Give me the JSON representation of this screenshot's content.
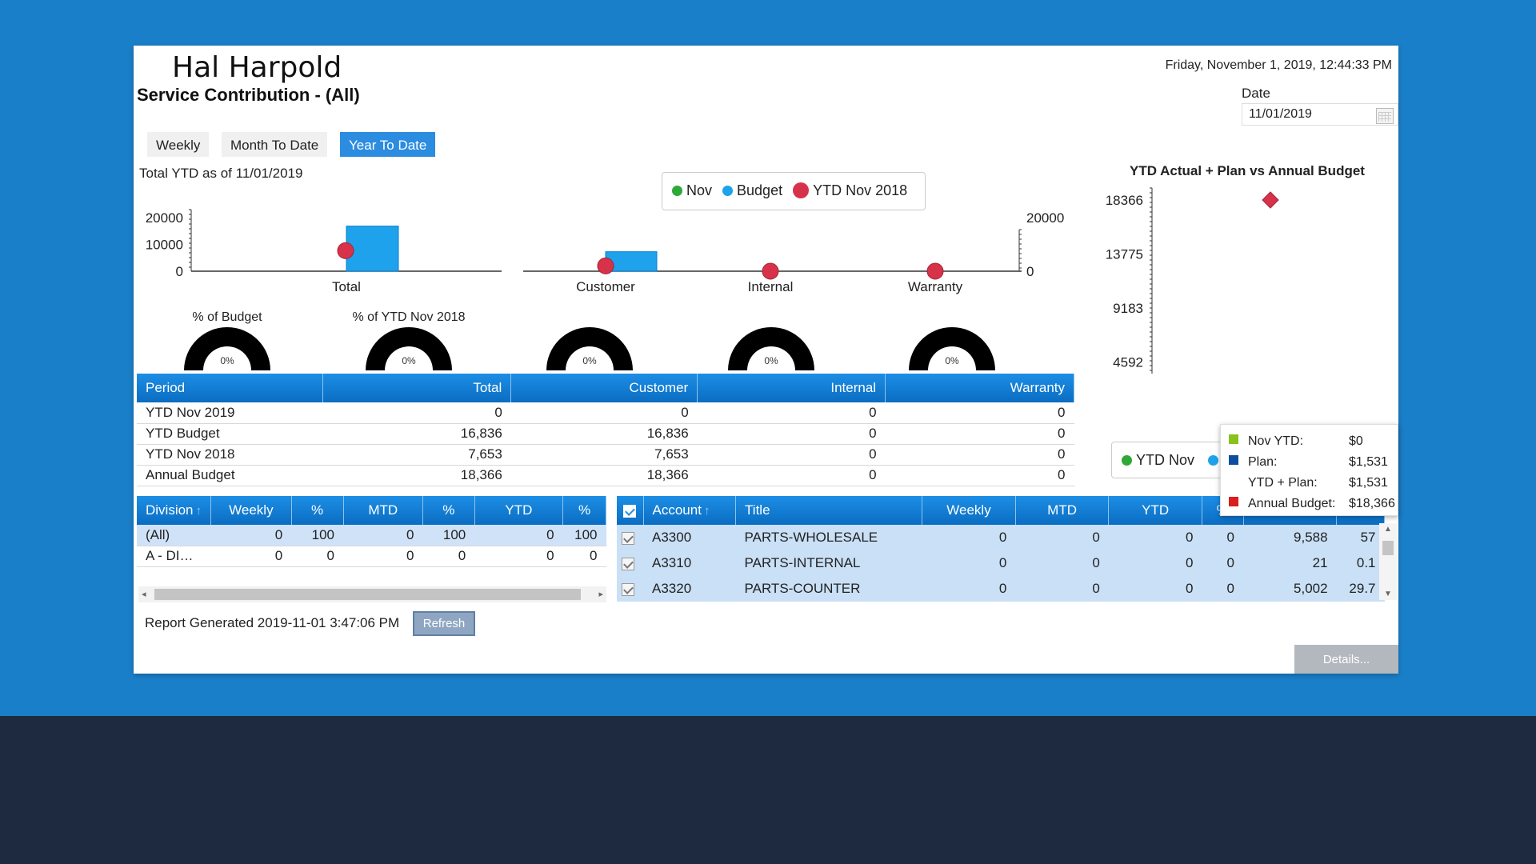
{
  "header": {
    "user_name": "Hal Harpold",
    "page_title": "Service Contribution - (All)",
    "datetime": "Friday, November 1, 2019, 12:44:33 PM",
    "date_label": "Date",
    "date_value": "11/01/2019"
  },
  "tabs": [
    {
      "label": "Weekly",
      "active": false
    },
    {
      "label": "Month To Date",
      "active": false
    },
    {
      "label": "Year To Date",
      "active": true
    }
  ],
  "ytd_caption": "Total YTD as of 11/01/2019",
  "legend": {
    "items": [
      {
        "label": "Nov",
        "color": "#2ea836"
      },
      {
        "label": "Budget",
        "color": "#1ea2ec"
      },
      {
        "label": "YTD Nov 2018",
        "color": "#d6334a"
      }
    ]
  },
  "chart_data": [
    {
      "type": "bar",
      "categories": [
        "Total"
      ],
      "series": [
        {
          "name": "Nov",
          "values": [
            0
          ]
        },
        {
          "name": "Budget",
          "values": [
            16836
          ]
        },
        {
          "name": "YTD Nov 2018",
          "values": [
            7653
          ]
        }
      ],
      "yticks": [
        "20000",
        "10000",
        "0"
      ],
      "ylim": [
        0,
        23000
      ]
    },
    {
      "type": "bar",
      "categories": [
        "Customer",
        "Internal",
        "Warranty"
      ],
      "series": [
        {
          "name": "Nov",
          "values": [
            0,
            0,
            0
          ]
        },
        {
          "name": "Budget",
          "values": [
            16836,
            0,
            0
          ]
        },
        {
          "name": "YTD Nov 2018",
          "values": [
            7653,
            0,
            0
          ]
        }
      ],
      "yticks": [
        "20000",
        "0"
      ],
      "ylim": [
        0,
        23000
      ]
    },
    {
      "type": "bar",
      "title": "YTD Actual + Plan vs Annual Budget",
      "categories": [
        ""
      ],
      "series": [
        {
          "name": "YTD Nov",
          "values": [
            0
          ]
        },
        {
          "name": "Plan",
          "values": [
            1531
          ]
        },
        {
          "name": "Annual Budget",
          "values": [
            18366
          ]
        }
      ],
      "yticks": [
        "18366",
        "13775",
        "9183",
        "4592",
        "0"
      ],
      "ylim": [
        0,
        18366
      ]
    }
  ],
  "gauges": [
    {
      "label": "% of Budget",
      "value": "0%"
    },
    {
      "label": "% of YTD Nov 2018",
      "value": "0%"
    },
    {
      "label": "",
      "value": "0%"
    },
    {
      "label": "",
      "value": "0%"
    },
    {
      "label": "",
      "value": "0%"
    }
  ],
  "summary_table": {
    "headers": [
      "Period",
      "Total",
      "Customer",
      "Internal",
      "Warranty"
    ],
    "rows": [
      [
        "YTD Nov 2019",
        "0",
        "0",
        "0",
        "0"
      ],
      [
        "YTD Budget",
        "16,836",
        "16,836",
        "0",
        "0"
      ],
      [
        "YTD Nov 2018",
        "7,653",
        "7,653",
        "0",
        "0"
      ],
      [
        "Annual Budget",
        "18,366",
        "18,366",
        "0",
        "0"
      ]
    ]
  },
  "division_table": {
    "headers": [
      "Division",
      "Weekly",
      "%",
      "MTD",
      "%",
      "YTD",
      "%"
    ],
    "rows": [
      [
        "(All)",
        "0",
        "100",
        "0",
        "100",
        "0",
        "100"
      ],
      [
        "A - DI…",
        "0",
        "0",
        "0",
        "0",
        "0",
        "0"
      ]
    ]
  },
  "account_table": {
    "headers": [
      "Account",
      "Title",
      "Weekly",
      "MTD",
      "YTD",
      "%",
      "",
      ""
    ],
    "rows": [
      [
        "A3300",
        "PARTS-WHOLESALE",
        "0",
        "0",
        "0",
        "0",
        "9,588",
        "57"
      ],
      [
        "A3310",
        "PARTS-INTERNAL",
        "0",
        "0",
        "0",
        "0",
        "21",
        "0.1"
      ],
      [
        "A3320",
        "PARTS-COUNTER",
        "0",
        "0",
        "0",
        "0",
        "5,002",
        "29.7"
      ]
    ]
  },
  "right_legend": {
    "label": "YTD Nov"
  },
  "tooltip": {
    "rows": [
      {
        "label": "Nov YTD:",
        "value": "$0",
        "color": "#88c21c"
      },
      {
        "label": "Plan:",
        "value": "$1,531",
        "color": "#0d4f9c"
      },
      {
        "label": "YTD + Plan:",
        "value": "$1,531",
        "color": ""
      },
      {
        "label": "Annual Budget:",
        "value": "$18,366",
        "color": "#d81e1e"
      }
    ]
  },
  "footer": {
    "report_generated": "Report Generated 2019-11-01 3:47:06 PM",
    "refresh_label": "Refresh",
    "details_label": "Details..."
  }
}
